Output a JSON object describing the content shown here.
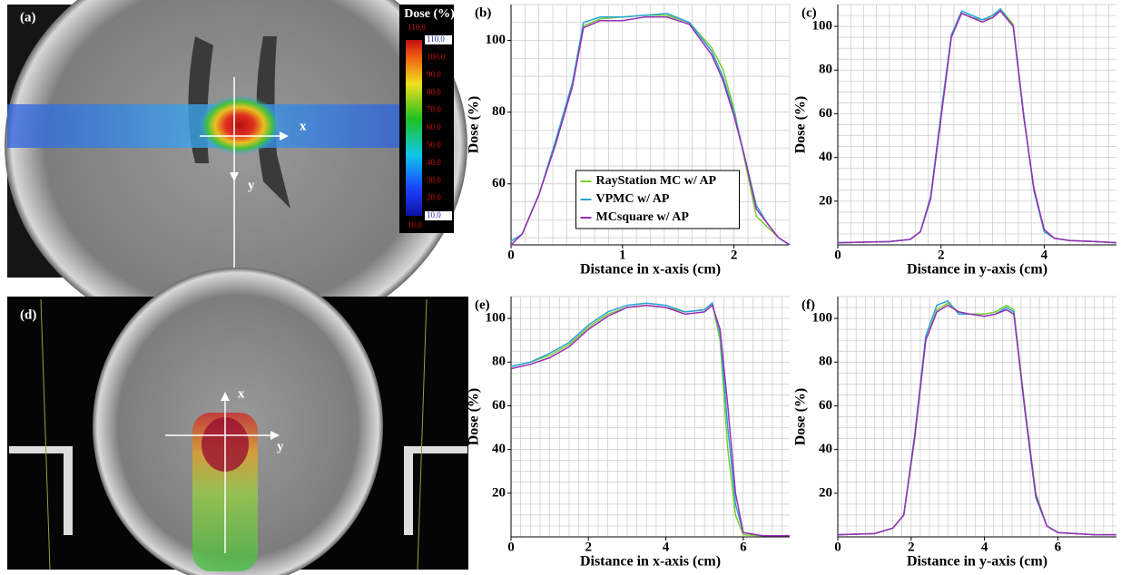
{
  "chart_data": [
    {
      "type": "line",
      "panel": "(b)",
      "xlabel": "Distance in x-axis (cm)",
      "ylabel": "Dose (%)",
      "x": [
        0,
        0.1,
        0.25,
        0.4,
        0.55,
        0.65,
        0.8,
        1.0,
        1.2,
        1.4,
        1.6,
        1.8,
        1.9,
        2.0,
        2.1,
        2.2,
        2.3,
        2.4,
        2.5
      ],
      "xlim": [
        0,
        2.5
      ],
      "xticks": [
        0,
        1,
        2
      ],
      "ylim": [
        43,
        110
      ],
      "yticks": [
        60,
        80,
        100
      ],
      "grid": true,
      "legend": "lower center",
      "series": [
        {
          "name": "RayStation MC w/ AP",
          "color": "#7ccf2e",
          "values": [
            44,
            46,
            57,
            72,
            88,
            104,
            106,
            106.5,
            107,
            107,
            105,
            98,
            92,
            81,
            66,
            51,
            48,
            45,
            43
          ]
        },
        {
          "name": "VPMC w/ AP",
          "color": "#27a4d6",
          "values": [
            44,
            46,
            57,
            72,
            88,
            105,
            106.5,
            106.5,
            107,
            107.5,
            105,
            97,
            90,
            80,
            67,
            54,
            49,
            45,
            43
          ]
        },
        {
          "name": "MCsquare w/ AP",
          "color": "#9a2eb5",
          "values": [
            43,
            46,
            57,
            71,
            87,
            103.5,
            105.5,
            105.5,
            106.5,
            106.5,
            104.5,
            96,
            89,
            79,
            67,
            53,
            49,
            45,
            43
          ]
        }
      ]
    },
    {
      "type": "line",
      "panel": "(c)",
      "xlabel": "Distance in y-axis (cm)",
      "ylabel": "Dose (%)",
      "x": [
        0,
        1,
        1.4,
        1.6,
        1.8,
        2.0,
        2.2,
        2.4,
        2.6,
        2.8,
        3.0,
        3.15,
        3.4,
        3.6,
        3.8,
        4.0,
        4.2,
        4.5,
        5.0,
        5.4
      ],
      "xlim": [
        0,
        5.4
      ],
      "xticks": [
        0,
        2,
        4
      ],
      "ylim": [
        0,
        110
      ],
      "yticks": [
        20,
        40,
        60,
        80,
        100
      ],
      "grid": true,
      "series": [
        {
          "color": "#7ccf2e",
          "values": [
            1,
            1.5,
            2.5,
            6,
            22,
            60,
            96,
            106,
            104,
            103,
            104,
            108,
            101,
            60,
            25,
            6,
            3,
            2,
            1.5,
            1
          ]
        },
        {
          "color": "#27a4d6",
          "values": [
            1,
            1.5,
            2.5,
            6,
            22,
            60,
            96,
            107,
            105,
            103,
            105,
            108,
            100,
            60,
            25,
            6,
            3,
            2,
            1.5,
            1
          ]
        },
        {
          "color": "#9a2eb5",
          "values": [
            1,
            1.5,
            2.5,
            6,
            21,
            58,
            95,
            106,
            104,
            102,
            104,
            107,
            100,
            59,
            26,
            7,
            3,
            2,
            1.5,
            1
          ]
        }
      ]
    },
    {
      "type": "line",
      "panel": "(e)",
      "xlabel": "Distance in x-axis (cm)",
      "ylabel": "Dose (%)",
      "x": [
        0,
        0.5,
        1,
        1.5,
        2,
        2.5,
        3,
        3.5,
        4,
        4.5,
        5,
        5.2,
        5.4,
        5.6,
        5.8,
        6,
        6.5,
        7.2
      ],
      "xlim": [
        0,
        7.2
      ],
      "xticks": [
        0,
        2,
        4,
        6
      ],
      "ylim": [
        0,
        110
      ],
      "yticks": [
        20,
        40,
        60,
        80,
        100
      ],
      "grid": true,
      "series": [
        {
          "color": "#7ccf2e",
          "values": [
            78,
            80,
            83,
            88,
            96,
            102,
            105,
            106,
            105,
            103,
            104,
            107,
            90,
            40,
            10,
            1,
            0.5,
            0.5
          ]
        },
        {
          "color": "#27a4d6",
          "values": [
            78,
            80,
            84,
            89,
            97,
            103,
            106,
            107,
            106,
            103,
            104,
            107,
            93,
            50,
            15,
            2,
            0.5,
            0.5
          ]
        },
        {
          "color": "#9a2eb5",
          "values": [
            77,
            79,
            82,
            87,
            95,
            101,
            105,
            106,
            105,
            102,
            103,
            106,
            95,
            60,
            20,
            2,
            0.5,
            0.5
          ]
        }
      ]
    },
    {
      "type": "line",
      "panel": "(f)",
      "xlabel": "Distance in y-axis (cm)",
      "ylabel": "Dose (%)",
      "x": [
        0,
        1,
        1.5,
        1.8,
        2.1,
        2.4,
        2.7,
        3,
        3.3,
        3.6,
        4,
        4.3,
        4.6,
        4.8,
        5.1,
        5.4,
        5.7,
        6,
        7,
        7.6
      ],
      "xlim": [
        0,
        7.6
      ],
      "xticks": [
        0,
        2,
        4,
        6
      ],
      "ylim": [
        0,
        110
      ],
      "yticks": [
        20,
        40,
        60,
        80,
        100
      ],
      "grid": true,
      "series": [
        {
          "color": "#7ccf2e",
          "values": [
            1,
            1.5,
            4,
            10,
            45,
            90,
            104,
            107,
            103,
            102,
            102,
            103,
            106,
            104,
            60,
            20,
            5,
            2,
            1,
            1
          ]
        },
        {
          "color": "#27a4d6",
          "values": [
            1,
            1.5,
            4,
            10,
            47,
            92,
            106,
            108,
            102,
            102,
            101,
            102,
            105,
            103,
            58,
            18,
            5,
            2,
            1,
            1
          ]
        },
        {
          "color": "#9a2eb5",
          "values": [
            1,
            1.5,
            4,
            10,
            46,
            90,
            103,
            106,
            103,
            102,
            101,
            102,
            104,
            102,
            59,
            19,
            5,
            2,
            1,
            1
          ]
        }
      ]
    }
  ],
  "images": [
    {
      "panel": "(a)",
      "axis_labels": [
        "x",
        "y"
      ],
      "colorbar": {
        "title": "Dose (%)",
        "range": [
          10,
          110
        ],
        "ticks": [
          {
            "value": 110,
            "label": "110.0"
          },
          {
            "value": 100,
            "label": "100.0"
          },
          {
            "value": 90,
            "label": "90.0"
          },
          {
            "value": 80,
            "label": "80.0"
          },
          {
            "value": 70,
            "label": "70.0"
          },
          {
            "value": 60,
            "label": "60.0"
          },
          {
            "value": 50,
            "label": "50.0"
          },
          {
            "value": 40,
            "label": "40.0"
          },
          {
            "value": 30,
            "label": "30.0"
          },
          {
            "value": 20,
            "label": "20.0"
          },
          {
            "value": 10,
            "label": "10.0"
          }
        ],
        "limits": [
          {
            "value": 110,
            "label": "110.0"
          },
          {
            "value": 10,
            "label": "10.0"
          }
        ]
      }
    },
    {
      "panel": "(d)",
      "axis_labels": [
        "x",
        "y"
      ]
    }
  ]
}
